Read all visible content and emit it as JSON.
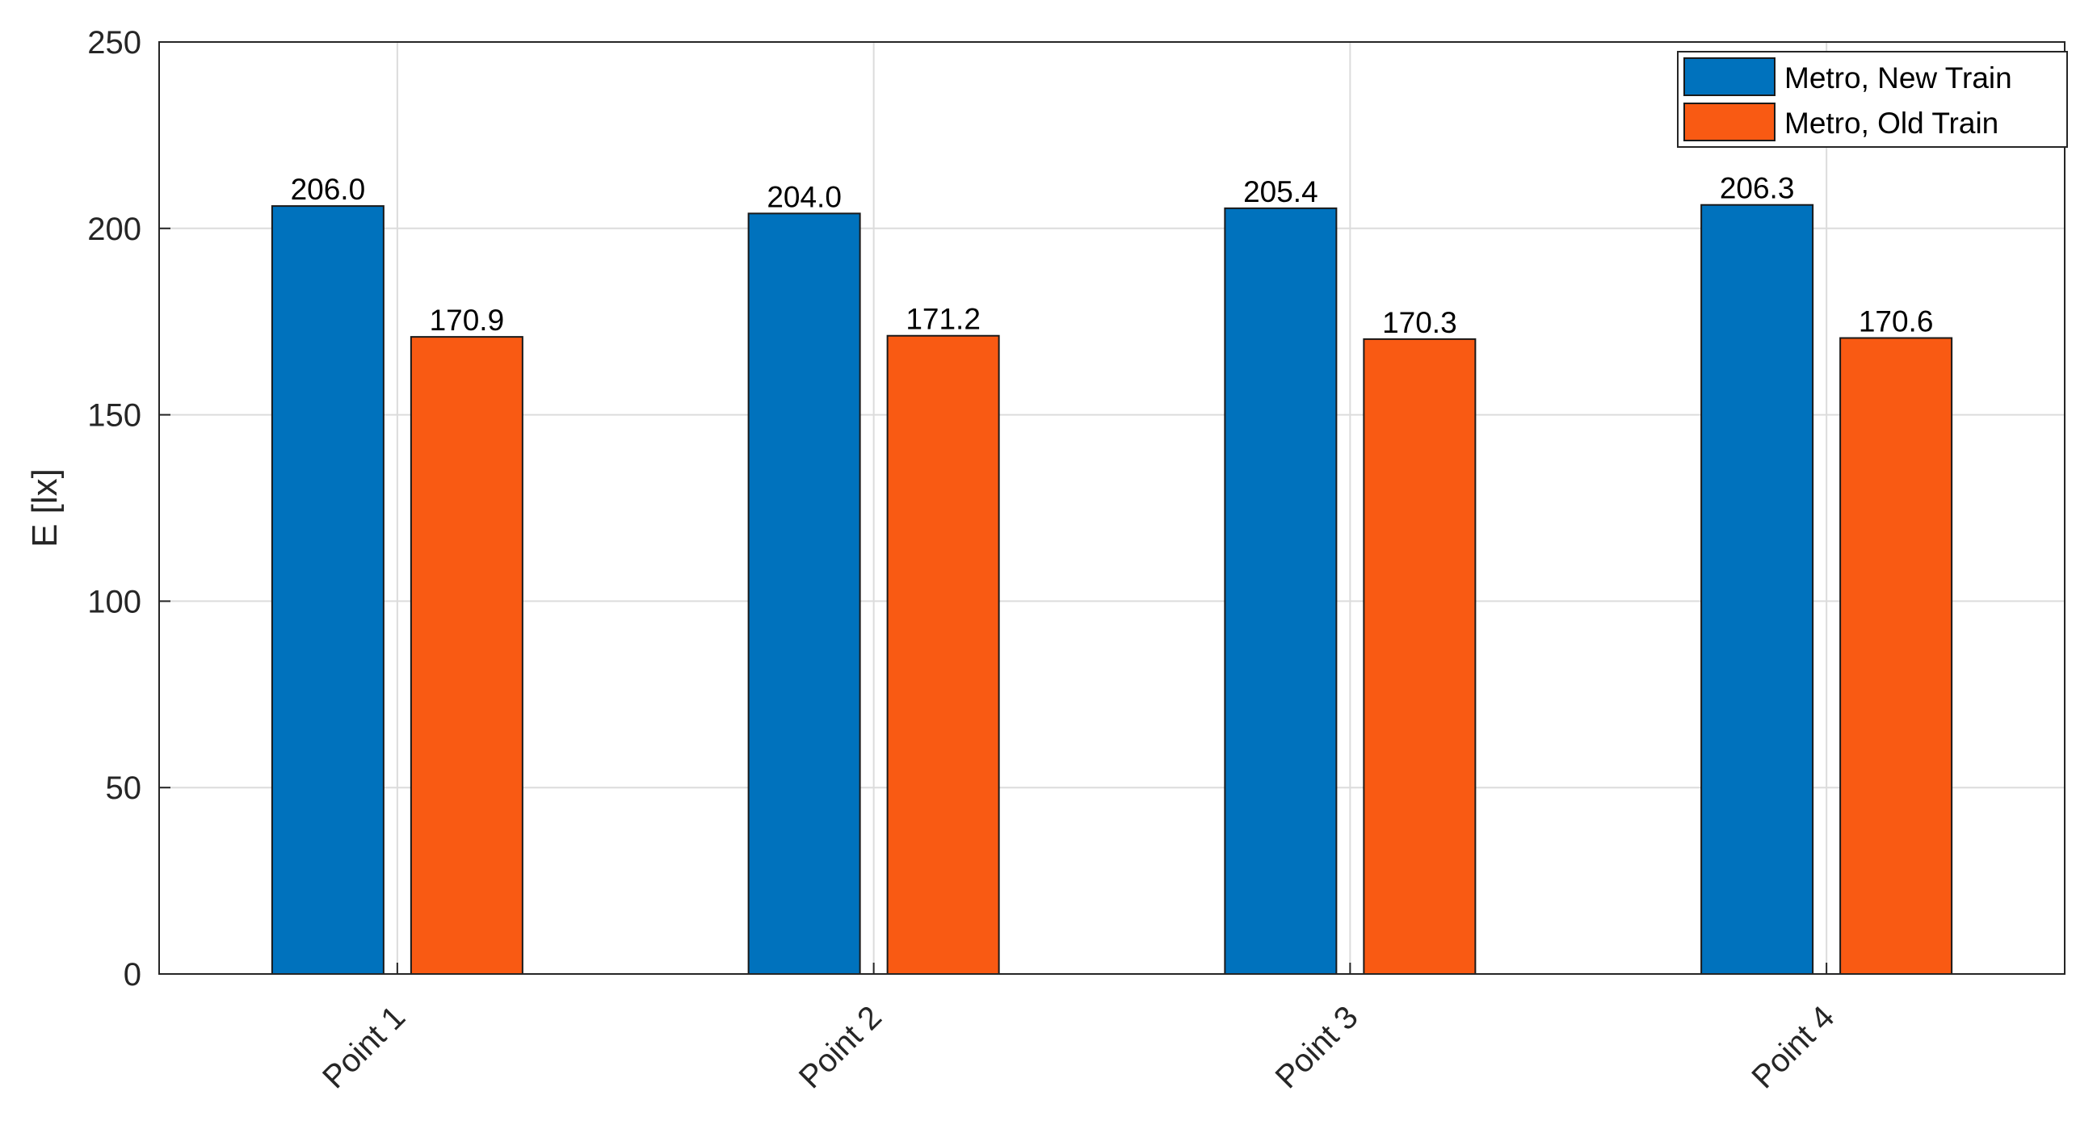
{
  "chart_data": {
    "type": "bar",
    "categories": [
      "Point 1",
      "Point 2",
      "Point 3",
      "Point 4"
    ],
    "series": [
      {
        "name": "Metro, New Train",
        "values": [
          206.0,
          204.0,
          205.4,
          206.3
        ],
        "color": "#0072BD"
      },
      {
        "name": "Metro, Old Train",
        "values": [
          170.9,
          171.2,
          170.3,
          170.6
        ],
        "color": "#F95A13"
      }
    ],
    "data_labels": [
      [
        "206.0",
        "204.0",
        "205.4",
        "206.3"
      ],
      [
        "170.9",
        "171.2",
        "170.3",
        "170.6"
      ]
    ],
    "title": "",
    "xlabel": "",
    "ylabel": "E [lx]",
    "ylim": [
      0,
      250
    ],
    "yticks": [
      0,
      50,
      100,
      150,
      200,
      250
    ],
    "grid": true,
    "legend_position": "top-right"
  }
}
